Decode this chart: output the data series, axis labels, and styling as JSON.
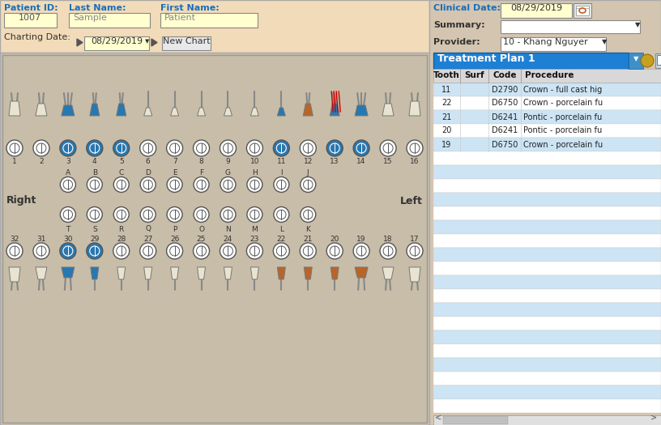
{
  "bg_color": "#d4c5b0",
  "header_bg": "#f2dbb8",
  "chart_bg": "#c8bda8",
  "right_bg": "#d4c5b0",
  "label_color": "#1a6fba",
  "input_bg": "#ffffd0",
  "patient_id_val": "1007",
  "last_name_val": "Sample",
  "first_name_val": "Patient",
  "clinical_date_val": "08/29/2019",
  "charting_date_val": "08/29/2019",
  "provider_val": "10 - Khang Nguyer",
  "new_chart_btn": "New Chart",
  "blue_color": "#2878b0",
  "orange_color": "#b8652a",
  "cream_tooth": "#e8e4d0",
  "blue_filled_upper": [
    3,
    4,
    5,
    11,
    13,
    14
  ],
  "orange_filled_upper": [
    12
  ],
  "blue_filled_lower": [
    30,
    29
  ],
  "orange_filled_lower": [
    22,
    21,
    20,
    19
  ],
  "treatment_plan_label": "Treatment Plan 1",
  "table_headers": [
    "Tooth",
    "Surf",
    "Code",
    "Procedure"
  ],
  "table_rows": [
    [
      "11",
      "",
      "D2790",
      "Crown - full cast hig"
    ],
    [
      "22",
      "",
      "D6750",
      "Crown - porcelain fu"
    ],
    [
      "21",
      "",
      "D6241",
      "Pontic - porcelain fu"
    ],
    [
      "20",
      "",
      "D6241",
      "Pontic - porcelain fu"
    ],
    [
      "19",
      "",
      "D6750",
      "Crown - porcelain fu"
    ]
  ],
  "table_header_bg": "#d8d8d8",
  "table_row_bg_even": "#cce4f4",
  "table_row_bg_odd": "#ffffff",
  "tp_bar_bg": "#1e80d4",
  "scrollbar_bg": "#c0c0c0",
  "upper_nums": [
    1,
    2,
    3,
    4,
    5,
    6,
    7,
    8,
    9,
    10,
    11,
    12,
    13,
    14,
    15,
    16
  ],
  "lower_nums": [
    32,
    31,
    30,
    29,
    28,
    27,
    26,
    25,
    24,
    23,
    22,
    21,
    20,
    19,
    18,
    17
  ],
  "primary_upper_letters": [
    "A",
    "B",
    "C",
    "D",
    "E",
    "F",
    "G",
    "H",
    "I",
    "J"
  ],
  "primary_lower_letters": [
    "T",
    "S",
    "R",
    "Q",
    "P",
    "O",
    "N",
    "M",
    "L",
    "K"
  ]
}
